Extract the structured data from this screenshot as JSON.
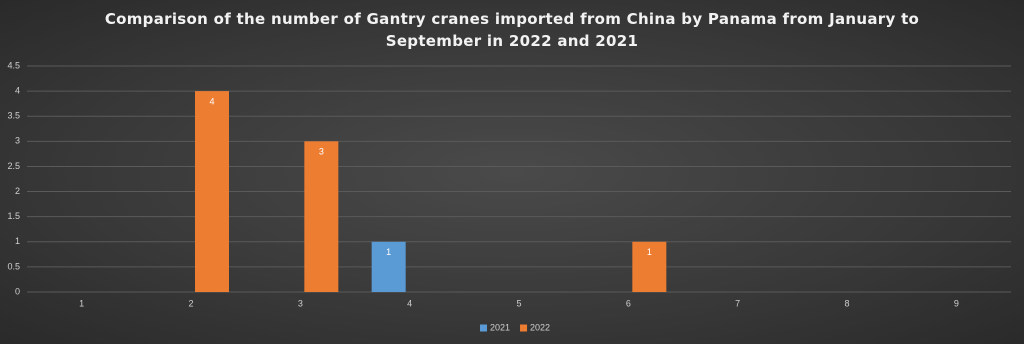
{
  "chart_data": {
    "type": "bar",
    "title": "Comparison of the number of Gantry cranes imported from China by Panama from January to September in 2022 and 2021",
    "categories": [
      "1",
      "2",
      "3",
      "4",
      "5",
      "6",
      "7",
      "8",
      "9"
    ],
    "series": [
      {
        "name": "2021",
        "color": "#5b9bd5",
        "values": [
          null,
          null,
          null,
          1,
          null,
          null,
          null,
          null,
          null
        ]
      },
      {
        "name": "2022",
        "color": "#ed7d31",
        "values": [
          null,
          4,
          3,
          null,
          null,
          1,
          null,
          null,
          null
        ]
      }
    ],
    "ylim": [
      0,
      4.5
    ],
    "yticks": [
      0,
      0.5,
      1,
      1.5,
      2,
      2.5,
      3,
      3.5,
      4,
      4.5
    ],
    "grid": true,
    "legend": "bottom"
  }
}
